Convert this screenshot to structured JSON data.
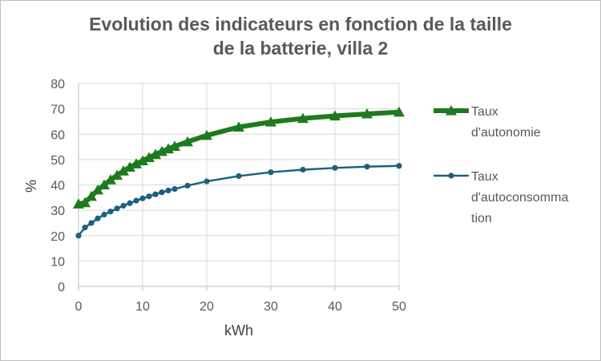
{
  "chart_data": {
    "type": "line",
    "title_lines": [
      "Evolution des indicateurs en fonction de la taille",
      "de la batterie, villa 2"
    ],
    "xlabel": "kWh",
    "ylabel": "%",
    "xlim": [
      0,
      50
    ],
    "ylim": [
      0,
      80
    ],
    "x_ticks": [
      "0",
      "10",
      "20",
      "30",
      "40",
      "50"
    ],
    "y_ticks": [
      "0",
      "10",
      "20",
      "30",
      "40",
      "50",
      "60",
      "70",
      "80"
    ],
    "grid": true,
    "legend_position": "right",
    "series": [
      {
        "name_lines": [
          "Taux",
          "d'autonomie"
        ],
        "color": "#1e7a1e",
        "marker": "triangle",
        "x": [
          0,
          1,
          2,
          3,
          4,
          5,
          6,
          7,
          8,
          9,
          10,
          11,
          12,
          13,
          14,
          15,
          17,
          20,
          25,
          30,
          35,
          40,
          45,
          50
        ],
        "y": [
          32.5,
          33,
          35.5,
          38,
          40,
          42,
          43.8,
          45.5,
          47,
          48.3,
          49.5,
          50.8,
          52,
          53.2,
          54.2,
          55.2,
          57,
          59.5,
          62.8,
          64.8,
          66.2,
          67.2,
          68,
          68.7
        ]
      },
      {
        "name_lines": [
          "Taux",
          "d'autoconsomma",
          "tion"
        ],
        "color": "#1f5f7f",
        "marker": "circle",
        "x": [
          0,
          1,
          2,
          3,
          4,
          5,
          6,
          7,
          8,
          9,
          10,
          11,
          12,
          13,
          14,
          15,
          17,
          20,
          25,
          30,
          35,
          40,
          45,
          50
        ],
        "y": [
          20,
          23.2,
          25,
          26.8,
          28.3,
          29.5,
          30.7,
          31.8,
          32.8,
          33.8,
          34.7,
          35.5,
          36.3,
          37.1,
          37.8,
          38.4,
          39.7,
          41.4,
          43.5,
          45,
          46,
          46.7,
          47.2,
          47.5
        ]
      }
    ]
  }
}
